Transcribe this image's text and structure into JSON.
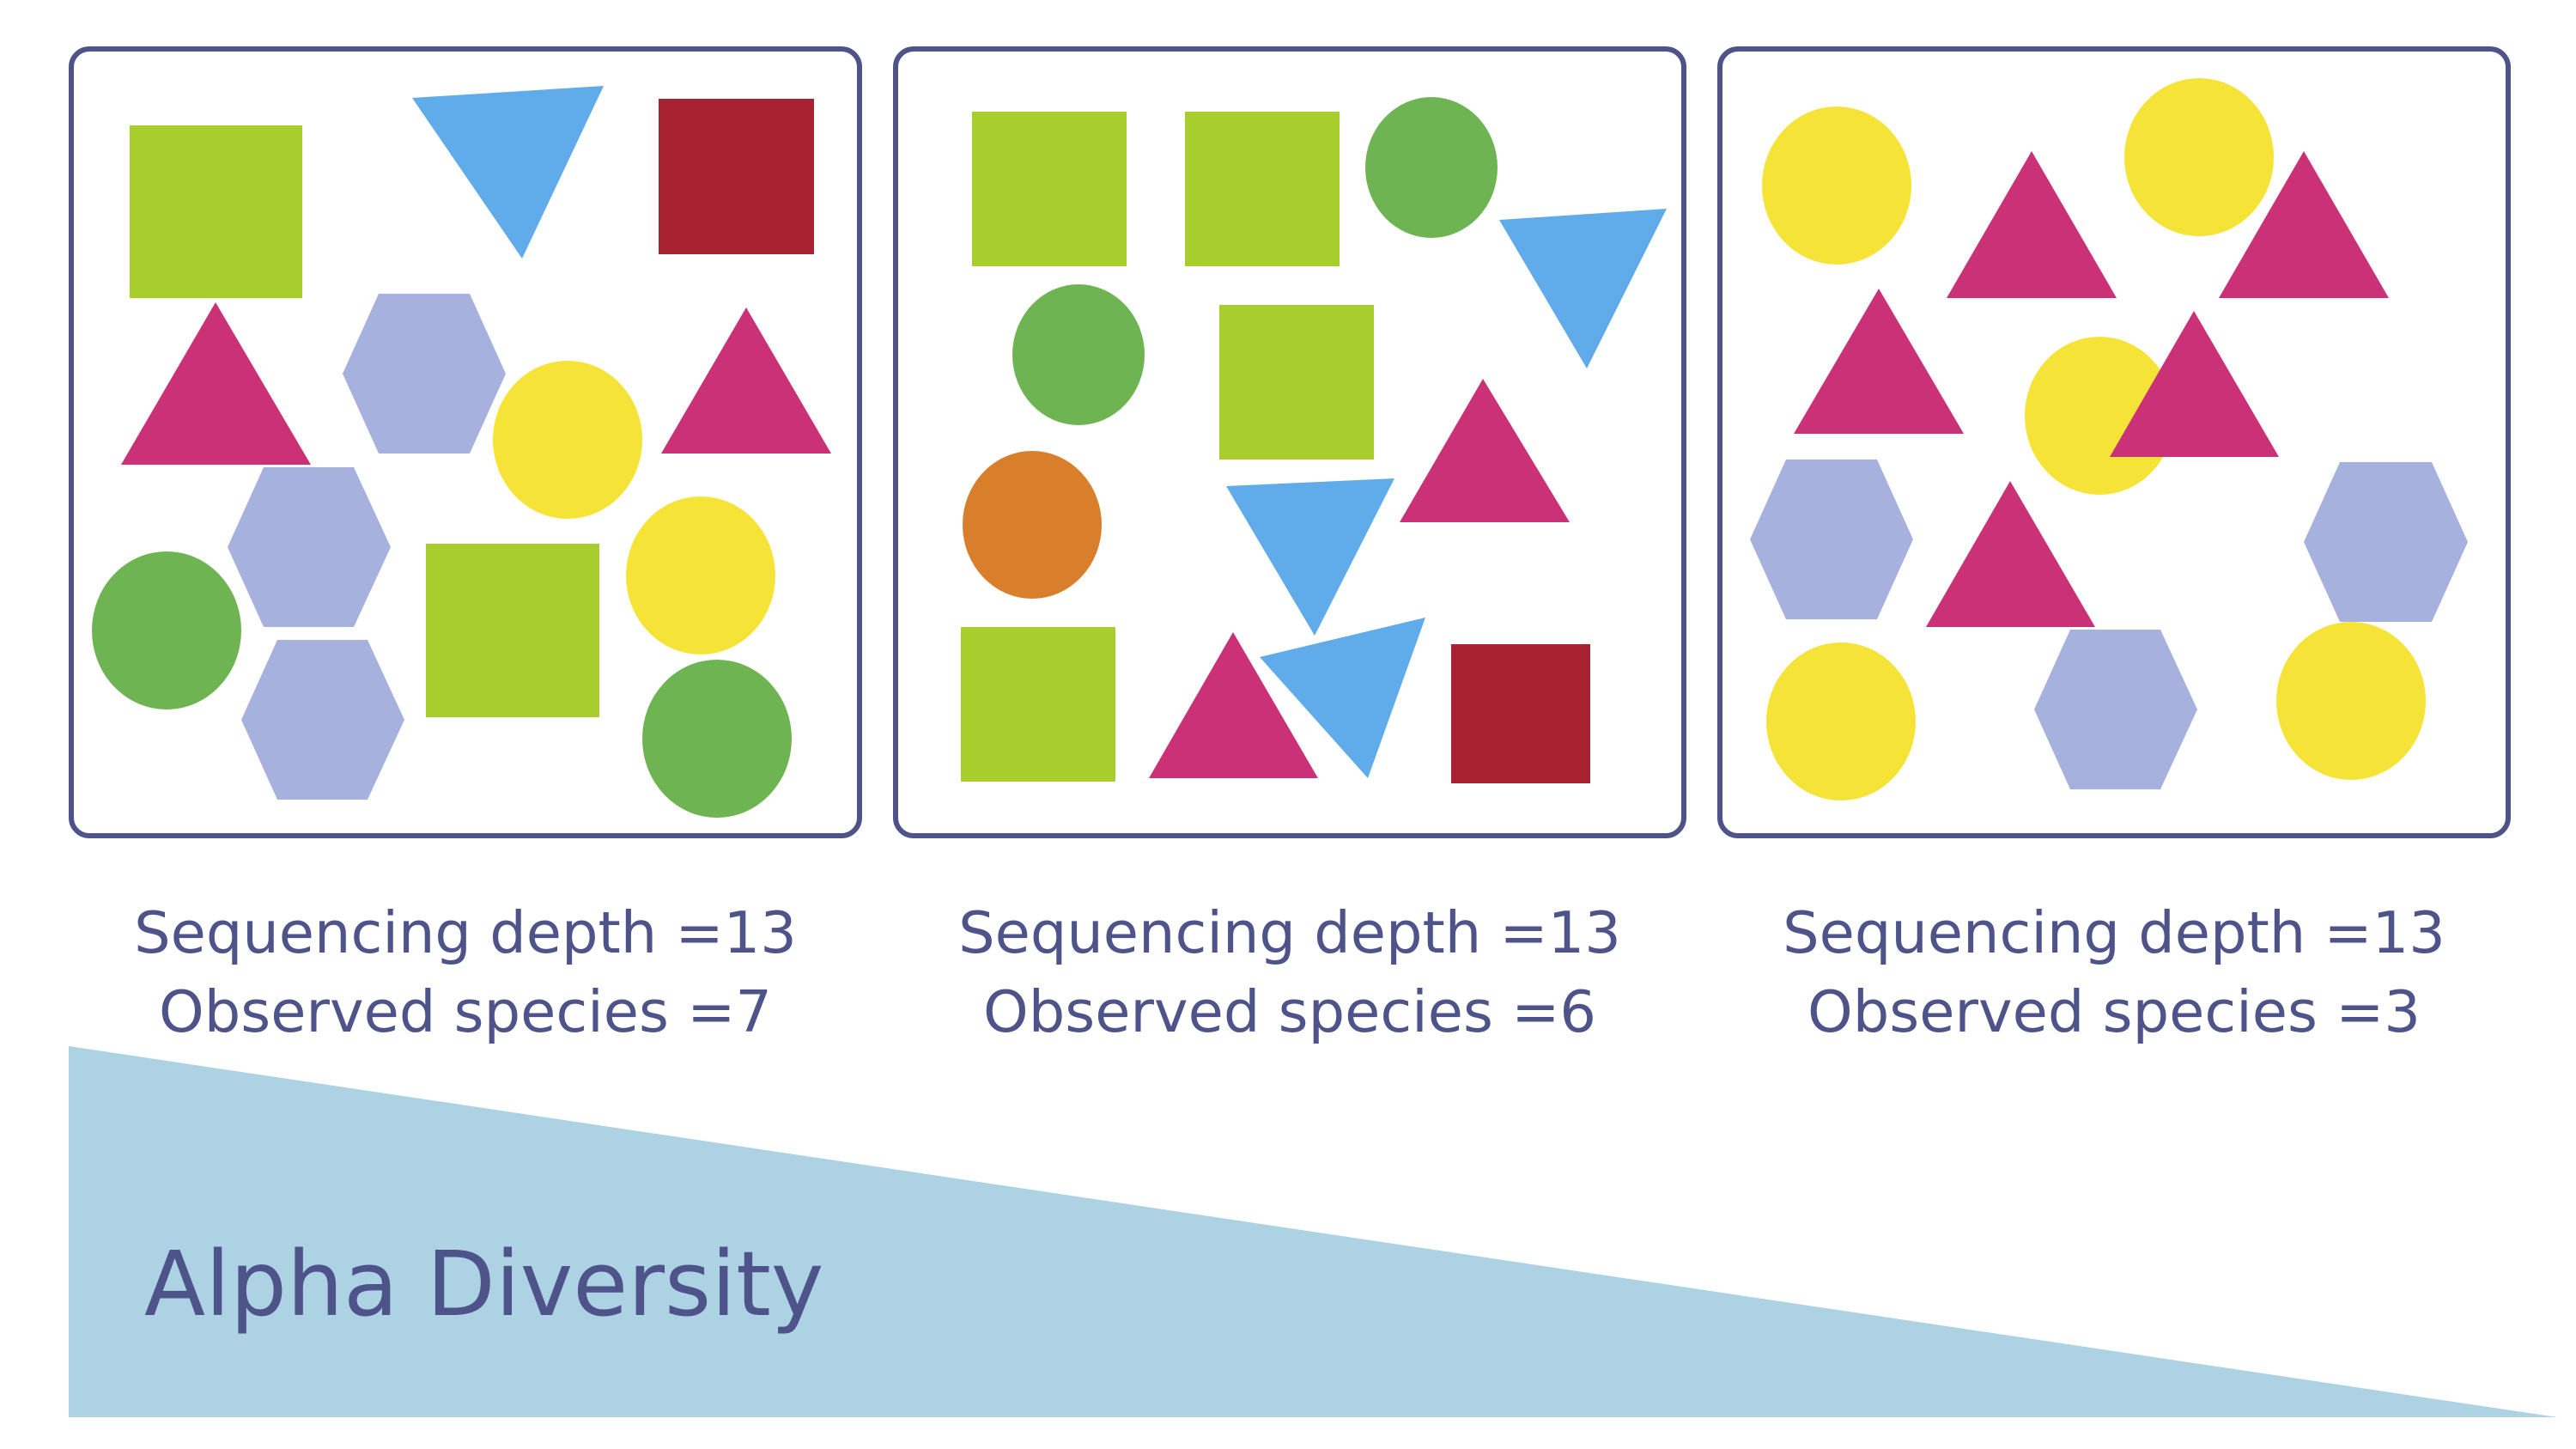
{
  "panels": [
    {
      "caption_depth": "Sequencing depth =13",
      "caption_species": "Observed species =7"
    },
    {
      "caption_depth": "Sequencing depth =13",
      "caption_species": "Observed species =6"
    },
    {
      "caption_depth": "Sequencing depth =13",
      "caption_species": "Observed species =3"
    }
  ],
  "gradient_label": "Alpha Diversity",
  "colors": {
    "frame": "#4e5489",
    "text": "#4e5489",
    "wedge": "#acd2e3",
    "square_lime": "#a8ce2e",
    "square_red": "#a82232",
    "triangle_blue": "#60abe9",
    "triangle_magenta": "#cb3176",
    "hexagon_lavender": "#a7b1dd",
    "circle_yellow": "#f6e337",
    "circle_green": "#6fb452",
    "circle_orange": "#d97f2b"
  },
  "species_shapes": [
    "lime-square",
    "red-square",
    "blue-triangle",
    "magenta-triangle",
    "lavender-hexagon",
    "yellow-circle",
    "green-circle",
    "orange-circle"
  ]
}
